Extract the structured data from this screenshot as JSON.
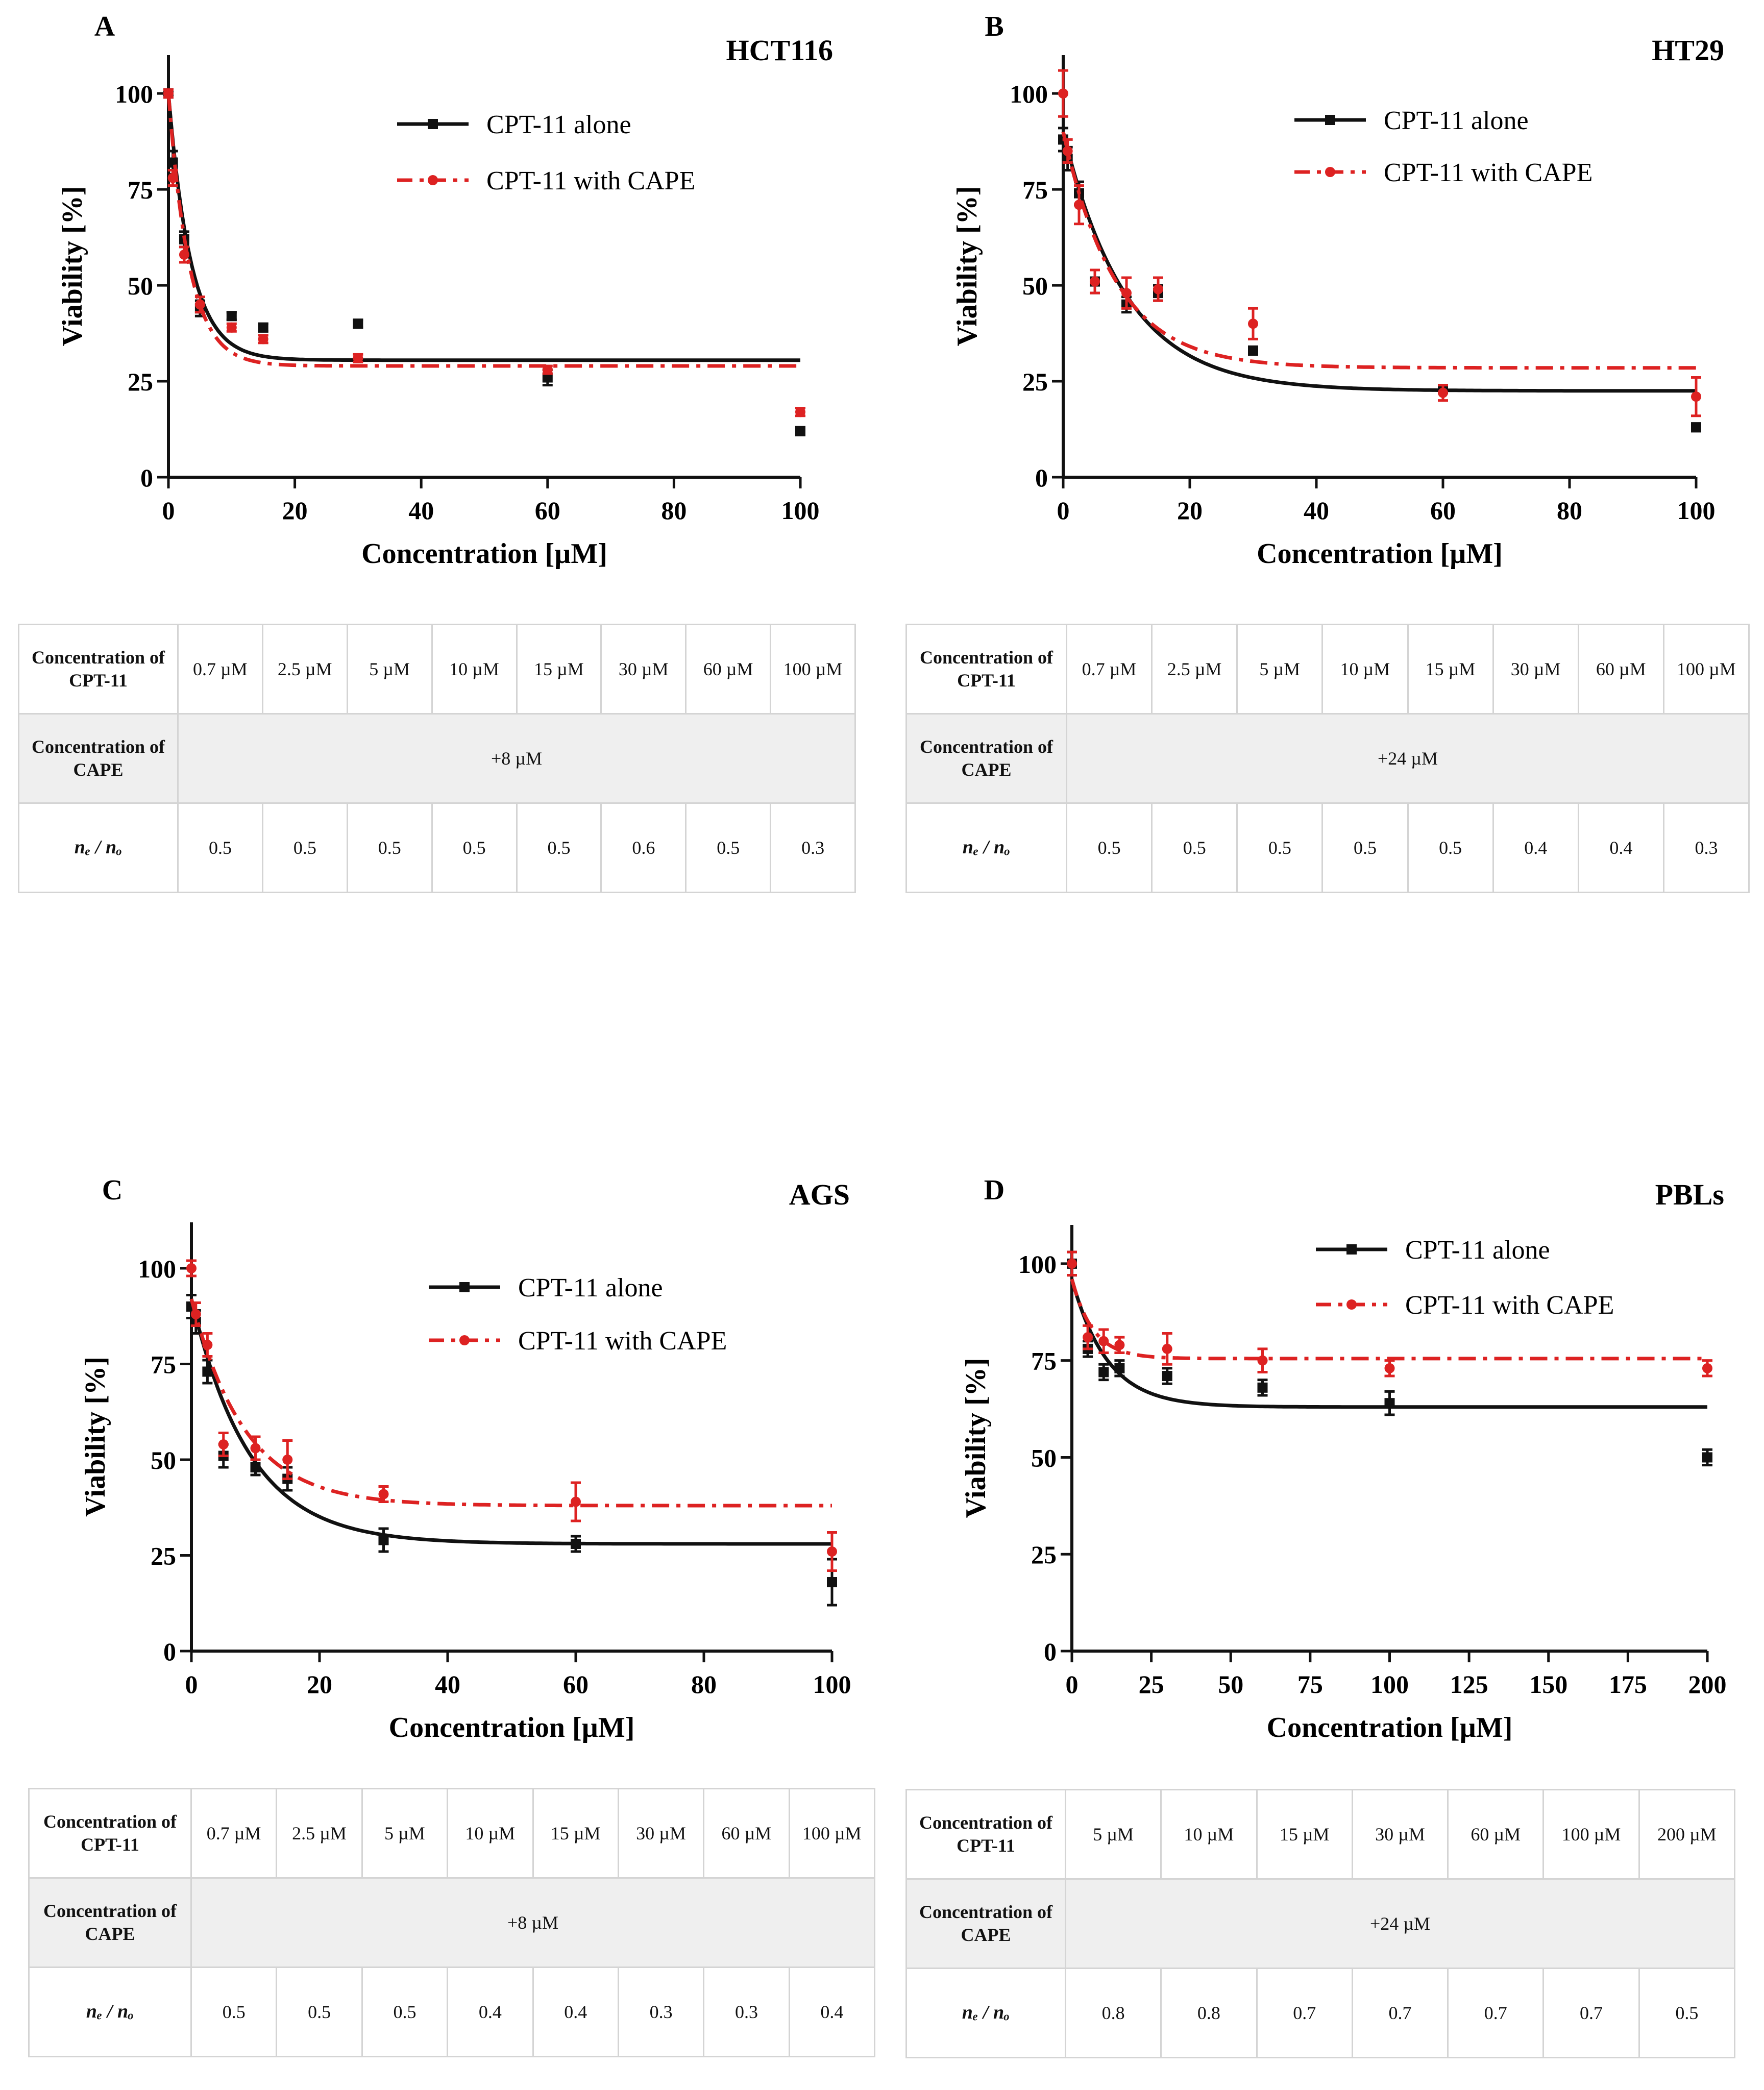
{
  "colors": {
    "alone": "#111111",
    "cape": "#dd2222",
    "table_border": "#d4d4d4",
    "table_band": "#efefef"
  },
  "chart_data": [
    {
      "type": "line",
      "panel_label": "A",
      "title": "HCT116",
      "xlabel": "Concentration [µM]",
      "ylabel": "Viability [%]",
      "xlim": [
        0,
        100
      ],
      "ylim": [
        0,
        110
      ],
      "xticks": [
        0,
        20,
        40,
        60,
        80,
        100
      ],
      "yticks": [
        0,
        25,
        50,
        75,
        100
      ],
      "legend": [
        "CPT-11 alone",
        "CPT-11 with CAPE"
      ],
      "series": [
        {
          "name": "CPT-11 alone",
          "x": [
            0,
            0.7,
            2.5,
            5,
            10,
            15,
            30,
            60,
            100
          ],
          "values": [
            100,
            82,
            62,
            44,
            42,
            39,
            40,
            26,
            12
          ],
          "err": [
            1,
            3,
            2,
            2,
            1,
            1,
            1,
            2,
            1
          ],
          "fit": {
            "top": 100,
            "plateau": 30.5,
            "k": 0.28
          }
        },
        {
          "name": "CPT-11 with CAPE",
          "x": [
            0,
            0.7,
            2.5,
            5,
            10,
            15,
            30,
            60,
            100
          ],
          "values": [
            100,
            78,
            58,
            45,
            39,
            36,
            31,
            28,
            17
          ],
          "err": [
            1,
            2,
            2,
            2,
            1,
            1,
            1,
            1,
            1
          ],
          "fit": {
            "top": 100,
            "plateau": 29,
            "k": 0.3
          }
        }
      ]
    },
    {
      "type": "line",
      "panel_label": "B",
      "title": "HT29",
      "xlabel": "Concentration [µM]",
      "ylabel": "Viability [%]",
      "xlim": [
        0,
        100
      ],
      "ylim": [
        0,
        110
      ],
      "xticks": [
        0,
        20,
        40,
        60,
        80,
        100
      ],
      "yticks": [
        0,
        25,
        50,
        75,
        100
      ],
      "legend": [
        "CPT-11 alone",
        "CPT-11 with CAPE"
      ],
      "series": [
        {
          "name": "CPT-11 alone",
          "x": [
            0,
            0.7,
            2.5,
            5,
            10,
            15,
            30,
            60,
            100
          ],
          "values": [
            88,
            83,
            74,
            51,
            45,
            48,
            33,
            23,
            13
          ],
          "err": [
            3,
            3,
            3,
            3,
            2,
            2,
            1,
            1,
            1
          ],
          "fit": {
            "top": 90,
            "plateau": 22.5,
            "k": 0.1
          }
        },
        {
          "name": "CPT-11 with CAPE",
          "x": [
            0,
            0.7,
            2.5,
            5,
            10,
            15,
            30,
            60,
            100
          ],
          "values": [
            100,
            85,
            71,
            51,
            48,
            49,
            40,
            22,
            21
          ],
          "err": [
            6,
            3,
            5,
            3,
            4,
            3,
            4,
            2,
            5
          ],
          "fit": {
            "top": 90,
            "plateau": 28.5,
            "k": 0.12
          }
        }
      ]
    },
    {
      "type": "line",
      "panel_label": "C",
      "title": "AGS",
      "xlabel": "Concentration [µM]",
      "ylabel": "Viability [%]",
      "xlim": [
        0,
        100
      ],
      "ylim": [
        0,
        112
      ],
      "xticks": [
        0,
        20,
        40,
        60,
        80,
        100
      ],
      "yticks": [
        0,
        25,
        50,
        75,
        100
      ],
      "legend": [
        "CPT-11 alone",
        "CPT-11 with CAPE"
      ],
      "series": [
        {
          "name": "CPT-11 alone",
          "x": [
            0,
            0.7,
            2.5,
            5,
            10,
            15,
            30,
            60,
            100
          ],
          "values": [
            90,
            86,
            73,
            51,
            48,
            45,
            29,
            28,
            18
          ],
          "err": [
            3,
            3,
            3,
            3,
            2,
            3,
            3,
            2,
            6
          ],
          "fit": {
            "top": 92,
            "plateau": 28,
            "k": 0.11
          }
        },
        {
          "name": "CPT-11 with CAPE",
          "x": [
            0,
            0.7,
            2.5,
            5,
            10,
            15,
            30,
            60,
            100
          ],
          "values": [
            100,
            88,
            80,
            54,
            53,
            50,
            41,
            39,
            26
          ],
          "err": [
            2,
            3,
            3,
            3,
            3,
            5,
            2,
            5,
            5
          ],
          "fit": {
            "top": 92,
            "plateau": 38,
            "k": 0.12
          }
        }
      ]
    },
    {
      "type": "line",
      "panel_label": "D",
      "title": "PBLs",
      "xlabel": "Concentration [µM]",
      "ylabel": "Viability [%]",
      "xlim": [
        0,
        200
      ],
      "ylim": [
        0,
        110
      ],
      "xticks": [
        0,
        25,
        50,
        75,
        100,
        125,
        150,
        175,
        200
      ],
      "yticks": [
        0,
        25,
        50,
        75,
        100
      ],
      "legend": [
        "CPT-11 alone",
        "CPT-11 with CAPE"
      ],
      "series": [
        {
          "name": "CPT-11 alone",
          "x": [
            0,
            5,
            10,
            15,
            30,
            60,
            100,
            200
          ],
          "values": [
            100,
            78,
            72,
            73,
            71,
            68,
            64,
            50
          ],
          "err": [
            3,
            2,
            2,
            2,
            2,
            2,
            3,
            2
          ],
          "fit": {
            "top": 96,
            "plateau": 63,
            "k": 0.09
          }
        },
        {
          "name": "CPT-11 with CAPE",
          "x": [
            0,
            5,
            10,
            15,
            30,
            60,
            100,
            200
          ],
          "values": [
            100,
            81,
            80,
            79,
            78,
            75,
            73,
            73
          ],
          "err": [
            3,
            3,
            3,
            2,
            4,
            3,
            2,
            2
          ],
          "fit": {
            "top": 96,
            "plateau": 75.5,
            "k": 0.15
          }
        }
      ]
    }
  ],
  "tables": [
    {
      "row_labels": [
        "Concentration of CPT-11",
        "Concentration of CAPE",
        "nₑ / nₒ"
      ],
      "cpt": [
        "0.7 µM",
        "2.5 µM",
        "5 µM",
        "10 µM",
        "15 µM",
        "30 µM",
        "60 µM",
        "100 µM"
      ],
      "cape": "+8 µM",
      "ratio": [
        "0.5",
        "0.5",
        "0.5",
        "0.5",
        "0.5",
        "0.6",
        "0.5",
        "0.3"
      ]
    },
    {
      "row_labels": [
        "Concentration of CPT-11",
        "Concentration of CAPE",
        "nₑ / nₒ"
      ],
      "cpt": [
        "0.7 µM",
        "2.5 µM",
        "5 µM",
        "10 µM",
        "15 µM",
        "30 µM",
        "60 µM",
        "100 µM"
      ],
      "cape": "+24 µM",
      "ratio": [
        "0.5",
        "0.5",
        "0.5",
        "0.5",
        "0.5",
        "0.4",
        "0.4",
        "0.3"
      ]
    },
    {
      "row_labels": [
        "Concentration of CPT-11",
        "Concentration of CAPE",
        "nₑ / nₒ"
      ],
      "cpt": [
        "0.7 µM",
        "2.5 µM",
        "5 µM",
        "10 µM",
        "15 µM",
        "30 µM",
        "60 µM",
        "100 µM"
      ],
      "cape": "+8 µM",
      "ratio": [
        "0.5",
        "0.5",
        "0.5",
        "0.4",
        "0.4",
        "0.3",
        "0.3",
        "0.4"
      ]
    },
    {
      "row_labels": [
        "Concentration of CPT-11",
        "Concentration of CAPE",
        "nₑ / nₒ"
      ],
      "cpt": [
        "5 µM",
        "10 µM",
        "15 µM",
        "30 µM",
        "60 µM",
        "100 µM",
        "200 µM"
      ],
      "cape": "+24 µM",
      "ratio": [
        "0.8",
        "0.8",
        "0.7",
        "0.7",
        "0.7",
        "0.7",
        "0.5"
      ]
    }
  ]
}
